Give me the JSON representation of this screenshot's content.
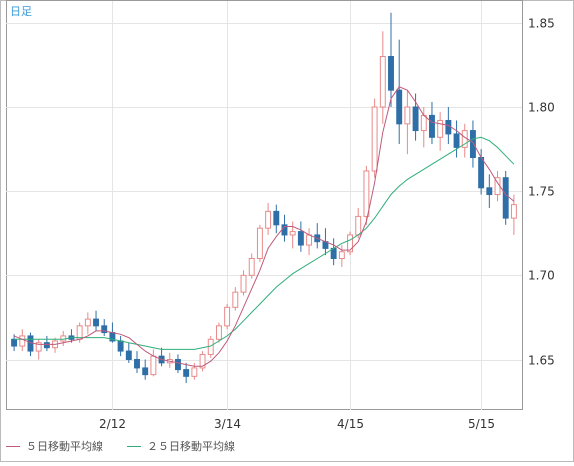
{
  "timeframe_label": "日足",
  "legend": [
    {
      "label": "５日移動平均線",
      "color": "#c05a7a"
    },
    {
      "label": "２５日移動平均線",
      "color": "#2fae7a"
    }
  ],
  "colors": {
    "up": "#e88a8a",
    "down": "#2f6fa8",
    "grid": "#e5e5e5",
    "axis": "#999999",
    "ma5": "#c05a7a",
    "ma25": "#2fae7a"
  },
  "chart_data": {
    "type": "candlestick",
    "x_ticks": [
      "2/12",
      "3/14",
      "4/15",
      "5/15"
    ],
    "ylim": [
      1.62,
      1.86
    ],
    "y_ticks": [
      1.65,
      1.7,
      1.75,
      1.8,
      1.85
    ],
    "y_tick_labels": [
      "1.65",
      "1.70",
      "1.75",
      "1.80",
      "1.85"
    ],
    "candles": [
      [
        1.662,
        1.665,
        1.655,
        1.658
      ],
      [
        1.658,
        1.668,
        1.655,
        1.664
      ],
      [
        1.664,
        1.666,
        1.652,
        1.655
      ],
      [
        1.655,
        1.662,
        1.65,
        1.66
      ],
      [
        1.66,
        1.664,
        1.655,
        1.657
      ],
      [
        1.657,
        1.663,
        1.654,
        1.661
      ],
      [
        1.661,
        1.667,
        1.658,
        1.664
      ],
      [
        1.664,
        1.668,
        1.66,
        1.662
      ],
      [
        1.662,
        1.672,
        1.66,
        1.67
      ],
      [
        1.67,
        1.678,
        1.665,
        1.674
      ],
      [
        1.674,
        1.679,
        1.667,
        1.67
      ],
      [
        1.67,
        1.674,
        1.664,
        1.666
      ],
      [
        1.666,
        1.672,
        1.66,
        1.661
      ],
      [
        1.661,
        1.664,
        1.652,
        1.655
      ],
      [
        1.655,
        1.66,
        1.648,
        1.65
      ],
      [
        1.65,
        1.655,
        1.642,
        1.645
      ],
      [
        1.645,
        1.65,
        1.638,
        1.641
      ],
      [
        1.641,
        1.656,
        1.64,
        1.652
      ],
      [
        1.652,
        1.657,
        1.646,
        1.648
      ],
      [
        1.648,
        1.654,
        1.645,
        1.65
      ],
      [
        1.65,
        1.653,
        1.642,
        1.644
      ],
      [
        1.644,
        1.648,
        1.636,
        1.64
      ],
      [
        1.64,
        1.648,
        1.638,
        1.645
      ],
      [
        1.645,
        1.655,
        1.643,
        1.653
      ],
      [
        1.653,
        1.664,
        1.651,
        1.662
      ],
      [
        1.662,
        1.672,
        1.66,
        1.67
      ],
      [
        1.67,
        1.683,
        1.668,
        1.681
      ],
      [
        1.681,
        1.693,
        1.679,
        1.69
      ],
      [
        1.69,
        1.703,
        1.688,
        1.7
      ],
      [
        1.7,
        1.713,
        1.698,
        1.71
      ],
      [
        1.71,
        1.73,
        1.708,
        1.728
      ],
      [
        1.728,
        1.743,
        1.724,
        1.738
      ],
      [
        1.738,
        1.742,
        1.725,
        1.73
      ],
      [
        1.73,
        1.736,
        1.72,
        1.724
      ],
      [
        1.724,
        1.732,
        1.716,
        1.726
      ],
      [
        1.726,
        1.732,
        1.714,
        1.718
      ],
      [
        1.718,
        1.728,
        1.712,
        1.724
      ],
      [
        1.724,
        1.731,
        1.716,
        1.72
      ],
      [
        1.72,
        1.728,
        1.712,
        1.716
      ],
      [
        1.716,
        1.722,
        1.706,
        1.71
      ],
      [
        1.71,
        1.718,
        1.705,
        1.714
      ],
      [
        1.714,
        1.726,
        1.712,
        1.724
      ],
      [
        1.724,
        1.74,
        1.722,
        1.735
      ],
      [
        1.735,
        1.765,
        1.73,
        1.762
      ],
      [
        1.762,
        1.805,
        1.758,
        1.8
      ],
      [
        1.8,
        1.845,
        1.79,
        1.83
      ],
      [
        1.83,
        1.856,
        1.8,
        1.81
      ],
      [
        1.81,
        1.84,
        1.778,
        1.79
      ],
      [
        1.79,
        1.81,
        1.772,
        1.8
      ],
      [
        1.8,
        1.808,
        1.78,
        1.786
      ],
      [
        1.786,
        1.8,
        1.776,
        1.795
      ],
      [
        1.795,
        1.803,
        1.778,
        1.782
      ],
      [
        1.782,
        1.797,
        1.774,
        1.792
      ],
      [
        1.792,
        1.8,
        1.778,
        1.784
      ],
      [
        1.784,
        1.792,
        1.77,
        1.776
      ],
      [
        1.776,
        1.79,
        1.77,
        1.786
      ],
      [
        1.786,
        1.792,
        1.764,
        1.77
      ],
      [
        1.77,
        1.775,
        1.748,
        1.752
      ],
      [
        1.752,
        1.76,
        1.74,
        1.748
      ],
      [
        1.748,
        1.762,
        1.744,
        1.758
      ],
      [
        1.758,
        1.762,
        1.73,
        1.734
      ],
      [
        1.734,
        1.748,
        1.724,
        1.742
      ]
    ],
    "ma5": [
      1.664,
      1.662,
      1.66,
      1.659,
      1.659,
      1.659,
      1.66,
      1.661,
      1.662,
      1.664,
      1.667,
      1.667,
      1.666,
      1.665,
      1.663,
      1.659,
      1.655,
      1.652,
      1.65,
      1.649,
      1.648,
      1.647,
      1.646,
      1.646,
      1.649,
      1.654,
      1.661,
      1.67,
      1.681,
      1.692,
      1.703,
      1.716,
      1.723,
      1.729,
      1.729,
      1.727,
      1.724,
      1.722,
      1.72,
      1.718,
      1.715,
      1.715,
      1.72,
      1.732,
      1.755,
      1.785,
      1.805,
      1.812,
      1.81,
      1.803,
      1.795,
      1.791,
      1.79,
      1.789,
      1.786,
      1.782,
      1.779,
      1.77,
      1.763,
      1.755,
      1.748,
      1.744
    ],
    "ma25": [
      1.662,
      1.662,
      1.662,
      1.662,
      1.662,
      1.662,
      1.662,
      1.663,
      1.663,
      1.663,
      1.663,
      1.663,
      1.662,
      1.661,
      1.66,
      1.659,
      1.658,
      1.657,
      1.656,
      1.656,
      1.656,
      1.656,
      1.656,
      1.657,
      1.658,
      1.661,
      1.664,
      1.668,
      1.673,
      1.678,
      1.683,
      1.688,
      1.693,
      1.697,
      1.701,
      1.704,
      1.707,
      1.71,
      1.713,
      1.716,
      1.719,
      1.721,
      1.724,
      1.728,
      1.734,
      1.741,
      1.748,
      1.753,
      1.757,
      1.76,
      1.763,
      1.766,
      1.769,
      1.772,
      1.775,
      1.778,
      1.781,
      1.782,
      1.78,
      1.776,
      1.771,
      1.766
    ]
  }
}
